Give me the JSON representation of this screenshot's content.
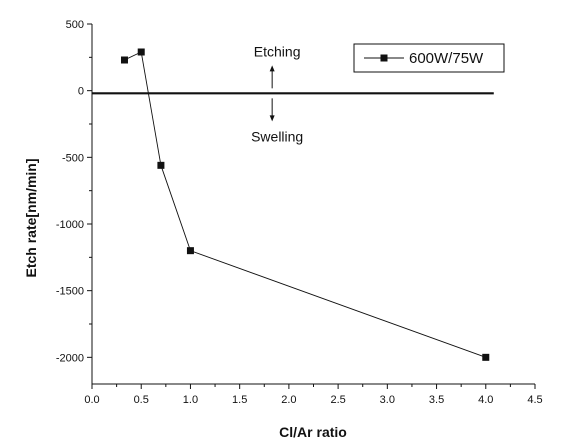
{
  "chart_data": {
    "type": "line",
    "xlabel": "Cl/Ar ratio",
    "ylabel": "Etch rate[nm/min]",
    "xlim": [
      0.0,
      4.5
    ],
    "ylim": [
      -2200,
      500
    ],
    "xticks": [
      "0.0",
      "0.5",
      "1.0",
      "1.5",
      "2.0",
      "2.5",
      "3.0",
      "3.5",
      "4.0",
      "4.5"
    ],
    "yticks": [
      "500",
      "0",
      "-500",
      "-1000",
      "-1500",
      "-2000"
    ],
    "grid": false,
    "legend_position": "top-right",
    "series": [
      {
        "name": "600W/75W",
        "marker": "square",
        "color": "#111111",
        "x": [
          0.33,
          0.5,
          0.7,
          1.0,
          4.0
        ],
        "y": [
          230,
          290,
          -560,
          -1200,
          -2000
        ]
      }
    ],
    "reference_line": {
      "y": -20,
      "x_from": 0.0,
      "x_to": 4.0
    },
    "annotations": [
      {
        "text": "Etching",
        "direction": "up",
        "x": 1.83
      },
      {
        "text": "Swelling",
        "direction": "down",
        "x": 1.83
      }
    ]
  }
}
